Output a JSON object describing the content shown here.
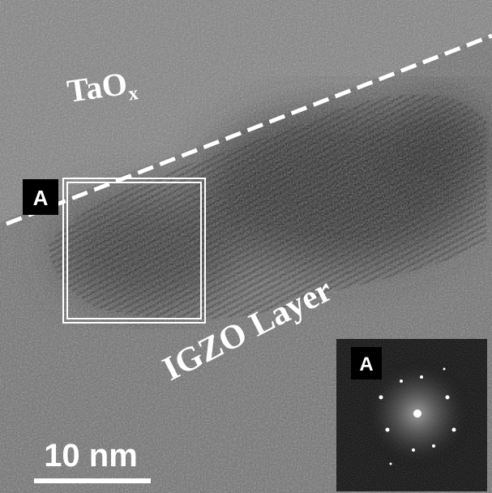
{
  "labels": {
    "top_layer": {
      "base": "TaO",
      "subscript": "x"
    },
    "bottom_layer": "IGZO Layer",
    "region_marker": "A",
    "inset_marker": "A",
    "scale_bar": "10 nm"
  }
}
